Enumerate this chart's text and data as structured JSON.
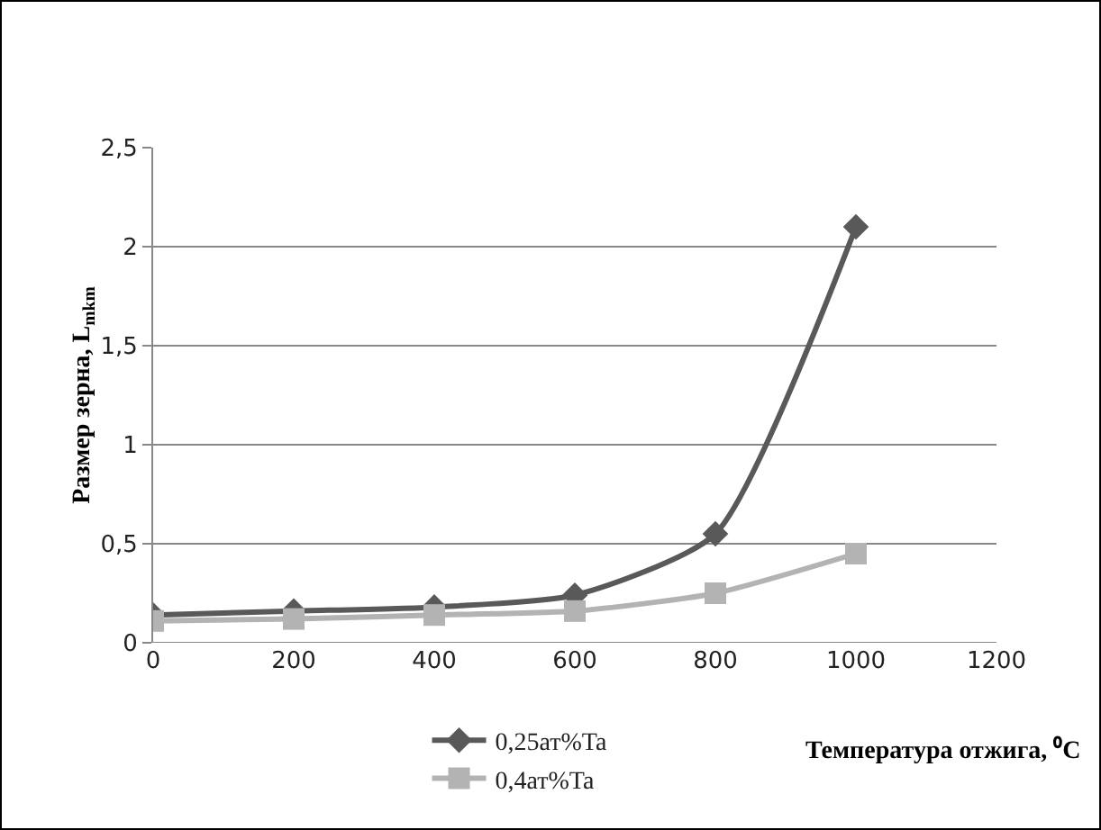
{
  "chart_data": {
    "type": "line",
    "xlabel": "Температура отжига, ⁰C",
    "ylabel": "Размер зерна, L$_{mkm}$",
    "x": [
      0,
      200,
      400,
      600,
      800,
      1000
    ],
    "series": [
      {
        "name": "0,25ат%Ta",
        "color": "#595959",
        "marker": "diamond",
        "values": [
          0.14,
          0.16,
          0.18,
          0.24,
          0.55,
          2.1
        ]
      },
      {
        "name": "0,4ат%Ta",
        "color": "#b3b3b3",
        "marker": "square",
        "values": [
          0.11,
          0.12,
          0.14,
          0.16,
          0.25,
          0.45
        ]
      }
    ],
    "xlim": [
      0,
      1200
    ],
    "xticks": [
      0,
      200,
      400,
      600,
      800,
      1000,
      1200
    ],
    "ylim": [
      0,
      2.5
    ],
    "yticks": [
      0,
      {
        "value": 0.5,
        "label": "0,5"
      },
      1,
      {
        "value": 1.5,
        "label": "1,5"
      },
      2,
      {
        "value": 2.5,
        "label": "2,5"
      }
    ],
    "grid": "y",
    "legend": "bottom",
    "line_style": "solid"
  }
}
